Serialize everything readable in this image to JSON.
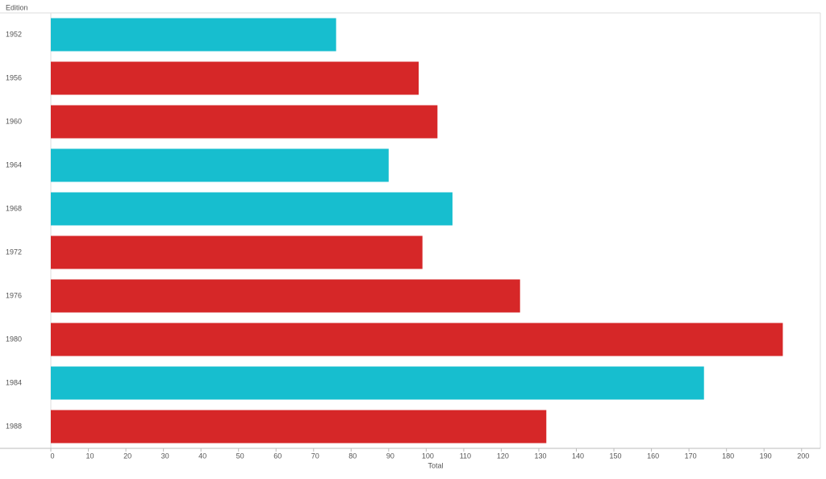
{
  "chart_data": {
    "type": "bar",
    "orientation": "horizontal",
    "y_header": "Edition",
    "x_label": "Total",
    "categories": [
      "1952",
      "1956",
      "1960",
      "1964",
      "1968",
      "1972",
      "1976",
      "1980",
      "1984",
      "1988"
    ],
    "values": [
      76,
      98,
      103,
      90,
      107,
      99,
      125,
      195,
      174,
      132
    ],
    "colors": [
      "#17becf",
      "#d62728",
      "#d62728",
      "#17becf",
      "#17becf",
      "#d62728",
      "#d62728",
      "#d62728",
      "#17becf",
      "#d62728"
    ],
    "xlim": [
      0,
      205
    ],
    "xticks": [
      0,
      10,
      20,
      30,
      40,
      50,
      60,
      70,
      80,
      90,
      100,
      110,
      120,
      130,
      140,
      150,
      160,
      170,
      180,
      190,
      200
    ],
    "grid": false
  }
}
